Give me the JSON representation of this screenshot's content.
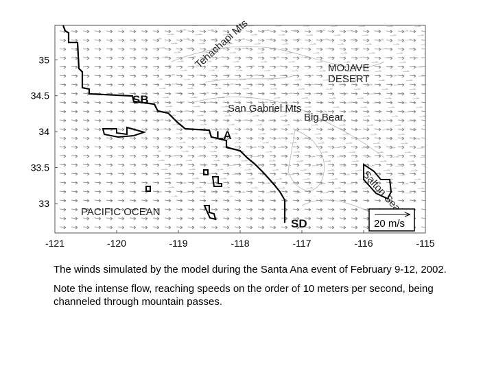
{
  "map": {
    "xlim": [
      -121,
      -115
    ],
    "ylim": [
      32.59,
      35.48
    ],
    "xticks": [
      -121,
      -120,
      -119,
      -118,
      -117,
      -116,
      -115
    ],
    "yticks": [
      35,
      34.5,
      34,
      33.5,
      33
    ],
    "labels": [
      "Tehachapi Mts",
      "MOJAVE",
      "DESERT",
      "SB",
      "San Gabriel Mts",
      "Big Bear",
      "LA",
      "PACIFIC OCEAN",
      "SD",
      "Salton Sea"
    ],
    "scale": "20 m/s"
  },
  "caption": [
    "The winds simulated by the model during the Santa Ana event of February 9-12, 2002.",
    "Note the intense flow, reaching speeds on the order of 10 meters per second, being channeled through mountain passes."
  ]
}
